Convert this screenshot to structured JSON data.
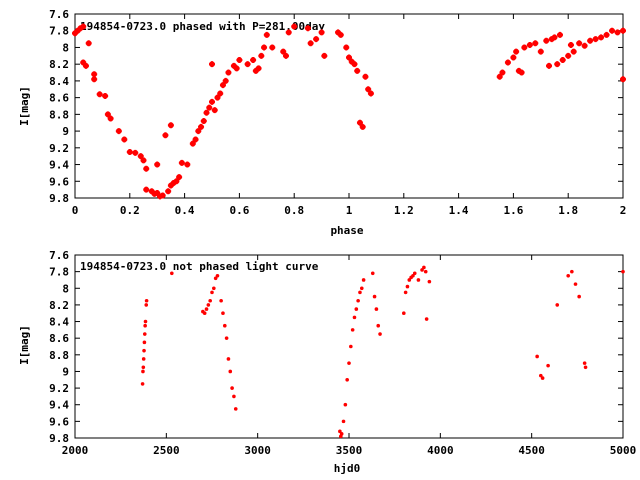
{
  "chart_data": [
    {
      "type": "scatter",
      "title": "194854-0723.0 phased with P=281.00day",
      "xlabel": "phase",
      "ylabel": "I[mag]",
      "xlim": [
        0,
        2
      ],
      "ylim": [
        7.6,
        9.8
      ],
      "y_inverted": true,
      "grid": false,
      "xticks": [
        "0",
        "0.2",
        "0.4",
        "0.6",
        "0.8",
        "1",
        "1.2",
        "1.4",
        "1.6",
        "1.8",
        "2"
      ],
      "yticks": [
        "7.6",
        "7.8",
        "8",
        "8.2",
        "8.4",
        "8.6",
        "8.8",
        "9",
        "9.2",
        "9.4",
        "9.6",
        "9.8"
      ],
      "marker_color": "#ff0000",
      "series": [
        {
          "points": [
            [
              0.0,
              7.83
            ],
            [
              0.01,
              7.8
            ],
            [
              0.02,
              7.77
            ],
            [
              0.03,
              7.75
            ],
            [
              0.05,
              7.95
            ],
            [
              0.03,
              8.18
            ],
            [
              0.04,
              8.22
            ],
            [
              0.07,
              8.32
            ],
            [
              0.07,
              8.38
            ],
            [
              0.09,
              8.56
            ],
            [
              0.11,
              8.58
            ],
            [
              0.12,
              8.8
            ],
            [
              0.13,
              8.85
            ],
            [
              0.16,
              9.0
            ],
            [
              0.18,
              9.1
            ],
            [
              0.2,
              9.25
            ],
            [
              0.22,
              9.26
            ],
            [
              0.24,
              9.3
            ],
            [
              0.25,
              9.35
            ],
            [
              0.26,
              9.45
            ],
            [
              0.26,
              9.7
            ],
            [
              0.28,
              9.72
            ],
            [
              0.29,
              9.75
            ],
            [
              0.3,
              9.74
            ],
            [
              0.3,
              9.4
            ],
            [
              0.31,
              9.78
            ],
            [
              0.32,
              9.77
            ],
            [
              0.33,
              9.05
            ],
            [
              0.34,
              9.72
            ],
            [
              0.35,
              9.65
            ],
            [
              0.36,
              9.62
            ],
            [
              0.37,
              9.6
            ],
            [
              0.35,
              8.93
            ],
            [
              0.38,
              9.55
            ],
            [
              0.39,
              9.38
            ],
            [
              0.41,
              9.4
            ],
            [
              0.43,
              9.15
            ],
            [
              0.44,
              9.1
            ],
            [
              0.45,
              9.0
            ],
            [
              0.46,
              8.95
            ],
            [
              0.47,
              8.88
            ],
            [
              0.48,
              8.78
            ],
            [
              0.49,
              8.72
            ],
            [
              0.5,
              8.65
            ],
            [
              0.5,
              8.2
            ],
            [
              0.51,
              8.75
            ],
            [
              0.52,
              8.6
            ],
            [
              0.53,
              8.55
            ],
            [
              0.54,
              8.45
            ],
            [
              0.55,
              8.4
            ],
            [
              0.56,
              8.3
            ],
            [
              0.58,
              8.22
            ],
            [
              0.59,
              8.25
            ],
            [
              0.6,
              8.15
            ],
            [
              0.63,
              8.2
            ],
            [
              0.65,
              8.15
            ],
            [
              0.66,
              8.28
            ],
            [
              0.67,
              8.25
            ],
            [
              0.68,
              8.1
            ],
            [
              0.69,
              8.0
            ],
            [
              0.7,
              7.85
            ],
            [
              0.72,
              8.0
            ],
            [
              0.76,
              8.05
            ],
            [
              0.77,
              8.1
            ],
            [
              0.78,
              7.82
            ],
            [
              0.8,
              7.75
            ],
            [
              0.85,
              7.77
            ],
            [
              0.86,
              7.95
            ],
            [
              0.88,
              7.9
            ],
            [
              0.9,
              7.82
            ],
            [
              0.91,
              8.1
            ],
            [
              0.96,
              7.82
            ],
            [
              0.97,
              7.85
            ],
            [
              0.99,
              8.0
            ],
            [
              1.0,
              8.12
            ],
            [
              1.01,
              8.17
            ],
            [
              1.02,
              8.2
            ],
            [
              1.03,
              8.28
            ],
            [
              1.04,
              8.9
            ],
            [
              1.05,
              8.95
            ],
            [
              1.06,
              8.35
            ],
            [
              1.07,
              8.5
            ],
            [
              1.08,
              8.55
            ],
            [
              1.55,
              8.35
            ],
            [
              1.56,
              8.3
            ],
            [
              1.58,
              8.18
            ],
            [
              1.6,
              8.12
            ],
            [
              1.61,
              8.05
            ],
            [
              1.62,
              8.28
            ],
            [
              1.63,
              8.3
            ],
            [
              1.64,
              8.0
            ],
            [
              1.66,
              7.97
            ],
            [
              1.68,
              7.95
            ],
            [
              1.7,
              8.05
            ],
            [
              1.72,
              7.92
            ],
            [
              1.73,
              8.22
            ],
            [
              1.74,
              7.9
            ],
            [
              1.75,
              7.88
            ],
            [
              1.76,
              8.2
            ],
            [
              1.77,
              7.85
            ],
            [
              1.78,
              8.15
            ],
            [
              1.8,
              8.1
            ],
            [
              1.81,
              7.97
            ],
            [
              1.82,
              8.05
            ],
            [
              1.84,
              7.95
            ],
            [
              1.86,
              7.98
            ],
            [
              1.88,
              7.92
            ],
            [
              1.9,
              7.9
            ],
            [
              1.92,
              7.88
            ],
            [
              1.94,
              7.85
            ],
            [
              1.96,
              7.8
            ],
            [
              1.98,
              7.82
            ],
            [
              2.0,
              7.8
            ],
            [
              2.0,
              8.38
            ]
          ]
        }
      ]
    },
    {
      "type": "scatter",
      "title": "194854-0723.0 not phased light curve",
      "xlabel": "hjd0",
      "ylabel": "I[mag]",
      "xlim": [
        2000,
        5000
      ],
      "ylim": [
        7.6,
        9.8
      ],
      "y_inverted": true,
      "grid": false,
      "xticks": [
        "2000",
        "2500",
        "3000",
        "3500",
        "4000",
        "4500",
        "5000"
      ],
      "yticks": [
        "7.6",
        "7.8",
        "8",
        "8.2",
        "8.4",
        "8.6",
        "8.8",
        "9",
        "9.2",
        "9.4",
        "9.6",
        "9.8"
      ],
      "marker_color": "#ff0000",
      "series": [
        {
          "points": [
            [
              2370,
              9.15
            ],
            [
              2372,
              9.0
            ],
            [
              2374,
              8.95
            ],
            [
              2376,
              8.85
            ],
            [
              2378,
              8.75
            ],
            [
              2380,
              8.65
            ],
            [
              2382,
              8.55
            ],
            [
              2384,
              8.45
            ],
            [
              2386,
              8.4
            ],
            [
              2390,
              8.2
            ],
            [
              2392,
              8.15
            ],
            [
              2530,
              7.82
            ],
            [
              2700,
              8.28
            ],
            [
              2710,
              8.3
            ],
            [
              2720,
              8.25
            ],
            [
              2730,
              8.2
            ],
            [
              2740,
              8.15
            ],
            [
              2750,
              8.05
            ],
            [
              2760,
              8.0
            ],
            [
              2770,
              7.88
            ],
            [
              2780,
              7.85
            ],
            [
              2800,
              8.15
            ],
            [
              2810,
              8.3
            ],
            [
              2820,
              8.45
            ],
            [
              2830,
              8.6
            ],
            [
              2840,
              8.85
            ],
            [
              2850,
              9.0
            ],
            [
              2860,
              9.2
            ],
            [
              2870,
              9.3
            ],
            [
              2880,
              9.45
            ],
            [
              3450,
              9.72
            ],
            [
              3455,
              9.78
            ],
            [
              3460,
              9.75
            ],
            [
              3470,
              9.6
            ],
            [
              3480,
              9.4
            ],
            [
              3490,
              9.1
            ],
            [
              3500,
              8.9
            ],
            [
              3510,
              8.7
            ],
            [
              3520,
              8.5
            ],
            [
              3530,
              8.35
            ],
            [
              3540,
              8.25
            ],
            [
              3550,
              8.15
            ],
            [
              3560,
              8.05
            ],
            [
              3570,
              8.0
            ],
            [
              3580,
              7.9
            ],
            [
              3630,
              7.82
            ],
            [
              3640,
              8.1
            ],
            [
              3650,
              8.25
            ],
            [
              3660,
              8.45
            ],
            [
              3670,
              8.55
            ],
            [
              3800,
              8.3
            ],
            [
              3810,
              8.05
            ],
            [
              3820,
              7.98
            ],
            [
              3830,
              7.9
            ],
            [
              3840,
              7.87
            ],
            [
              3850,
              7.85
            ],
            [
              3860,
              7.82
            ],
            [
              3880,
              7.9
            ],
            [
              3900,
              7.78
            ],
            [
              3910,
              7.75
            ],
            [
              3920,
              7.8
            ],
            [
              3925,
              8.37
            ],
            [
              3940,
              7.92
            ],
            [
              4530,
              8.82
            ],
            [
              4550,
              9.05
            ],
            [
              4560,
              9.08
            ],
            [
              4590,
              8.93
            ],
            [
              4640,
              8.2
            ],
            [
              4700,
              7.85
            ],
            [
              4720,
              7.8
            ],
            [
              4740,
              7.95
            ],
            [
              4760,
              8.1
            ],
            [
              4790,
              8.9
            ],
            [
              4795,
              8.95
            ],
            [
              5000,
              7.8
            ]
          ]
        }
      ]
    }
  ]
}
